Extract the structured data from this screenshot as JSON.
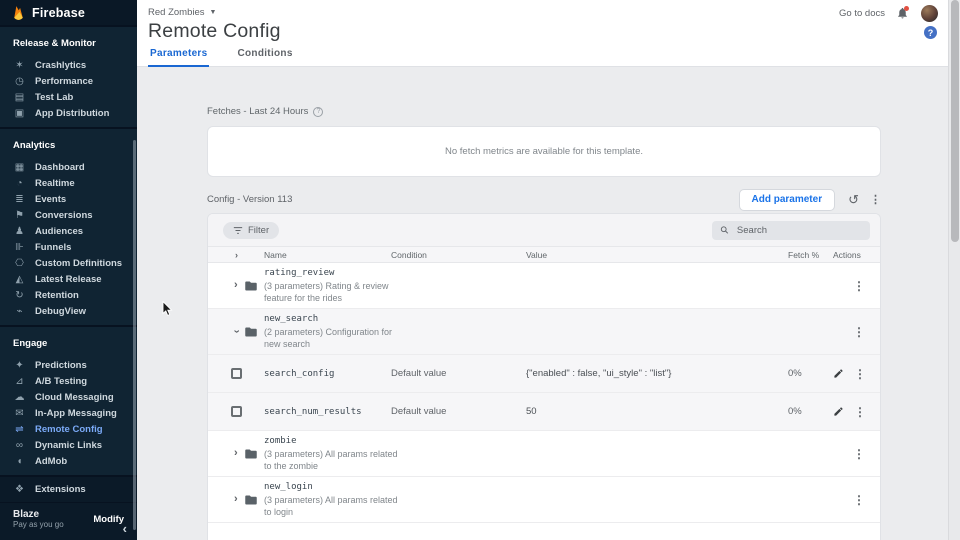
{
  "sidebar": {
    "brand": "Firebase",
    "sections": [
      {
        "title": "Release & Monitor",
        "items": [
          {
            "label": "Crashlytics",
            "icon": "crashlytics-icon"
          },
          {
            "label": "Performance",
            "icon": "performance-icon"
          },
          {
            "label": "Test Lab",
            "icon": "test-lab-icon"
          },
          {
            "label": "App Distribution",
            "icon": "app-distribution-icon"
          }
        ]
      },
      {
        "title": "Analytics",
        "items": [
          {
            "label": "Dashboard",
            "icon": "dashboard-icon"
          },
          {
            "label": "Realtime",
            "icon": "realtime-icon"
          },
          {
            "label": "Events",
            "icon": "events-icon"
          },
          {
            "label": "Conversions",
            "icon": "conversions-icon"
          },
          {
            "label": "Audiences",
            "icon": "audiences-icon"
          },
          {
            "label": "Funnels",
            "icon": "funnels-icon"
          },
          {
            "label": "Custom Definitions",
            "icon": "custom-definitions-icon"
          },
          {
            "label": "Latest Release",
            "icon": "latest-release-icon"
          },
          {
            "label": "Retention",
            "icon": "retention-icon"
          },
          {
            "label": "DebugView",
            "icon": "debugview-icon"
          }
        ]
      },
      {
        "title": "Engage",
        "items": [
          {
            "label": "Predictions",
            "icon": "predictions-icon"
          },
          {
            "label": "A/B Testing",
            "icon": "ab-testing-icon"
          },
          {
            "label": "Cloud Messaging",
            "icon": "cloud-messaging-icon"
          },
          {
            "label": "In-App Messaging",
            "icon": "in-app-messaging-icon"
          },
          {
            "label": "Remote Config",
            "icon": "remote-config-icon",
            "active": true
          },
          {
            "label": "Dynamic Links",
            "icon": "dynamic-links-icon"
          },
          {
            "label": "AdMob",
            "icon": "admob-icon"
          }
        ]
      }
    ],
    "icon_glyphs": {
      "crashlytics-icon": "✶",
      "performance-icon": "◷",
      "test-lab-icon": "▤",
      "app-distribution-icon": "▣",
      "dashboard-icon": "▦",
      "realtime-icon": "◔",
      "events-icon": "≣",
      "conversions-icon": "⚑",
      "audiences-icon": "♟",
      "funnels-icon": "⊪",
      "custom-definitions-icon": "⎔",
      "latest-release-icon": "◭",
      "retention-icon": "↻",
      "debugview-icon": "⌁",
      "predictions-icon": "✦",
      "ab-testing-icon": "⊿",
      "cloud-messaging-icon": "☁",
      "in-app-messaging-icon": "✉",
      "remote-config-icon": "⇌",
      "dynamic-links-icon": "∞",
      "admob-icon": "◖",
      "extensions-icon": "❖"
    },
    "extensions_label": "Extensions",
    "plan": {
      "name": "Blaze",
      "desc": "Pay as you go",
      "action": "Modify"
    }
  },
  "topbar": {
    "project": "Red Zombies",
    "go_to_docs": "Go to docs"
  },
  "page": {
    "title": "Remote Config",
    "tabs": [
      {
        "label": "Parameters",
        "active": true
      },
      {
        "label": "Conditions",
        "active": false
      }
    ]
  },
  "fetches": {
    "label": "Fetches - Last 24 Hours",
    "empty_message": "No fetch metrics are available for this template."
  },
  "config_bar": {
    "label": "Config - Version 113",
    "add_button": "Add parameter"
  },
  "toolbar": {
    "filter_label": "Filter",
    "search_placeholder": "Search"
  },
  "table": {
    "headers": {
      "name": "Name",
      "condition": "Condition",
      "value": "Value",
      "fetch": "Fetch %",
      "actions": "Actions"
    },
    "rows": [
      {
        "type": "group",
        "name": "rating_review",
        "description": "(3 parameters) Rating & review feature for the rides",
        "expanded": false,
        "shaded": false
      },
      {
        "type": "group",
        "name": "new_search",
        "description": "(2 parameters) Configuration for new search",
        "expanded": true,
        "shaded": true
      },
      {
        "type": "param",
        "name": "search_config",
        "condition": "Default value",
        "value": "{\"enabled\" : false, \"ui_style\" : \"list\"}",
        "fetch": "0%",
        "shaded": true
      },
      {
        "type": "param",
        "name": "search_num_results",
        "condition": "Default value",
        "value": "50",
        "fetch": "0%",
        "shaded": true
      },
      {
        "type": "group",
        "name": "zombie",
        "description": "(3 parameters) All params related to the zombie",
        "expanded": false,
        "shaded": false
      },
      {
        "type": "group",
        "name": "new_login",
        "description": "(3 parameters) All params related to login",
        "expanded": false,
        "shaded": false
      }
    ]
  },
  "colors": {
    "accent": "#1a73e8",
    "sidebar_active": "#7baaf7",
    "tab_active": "#1967d2"
  }
}
